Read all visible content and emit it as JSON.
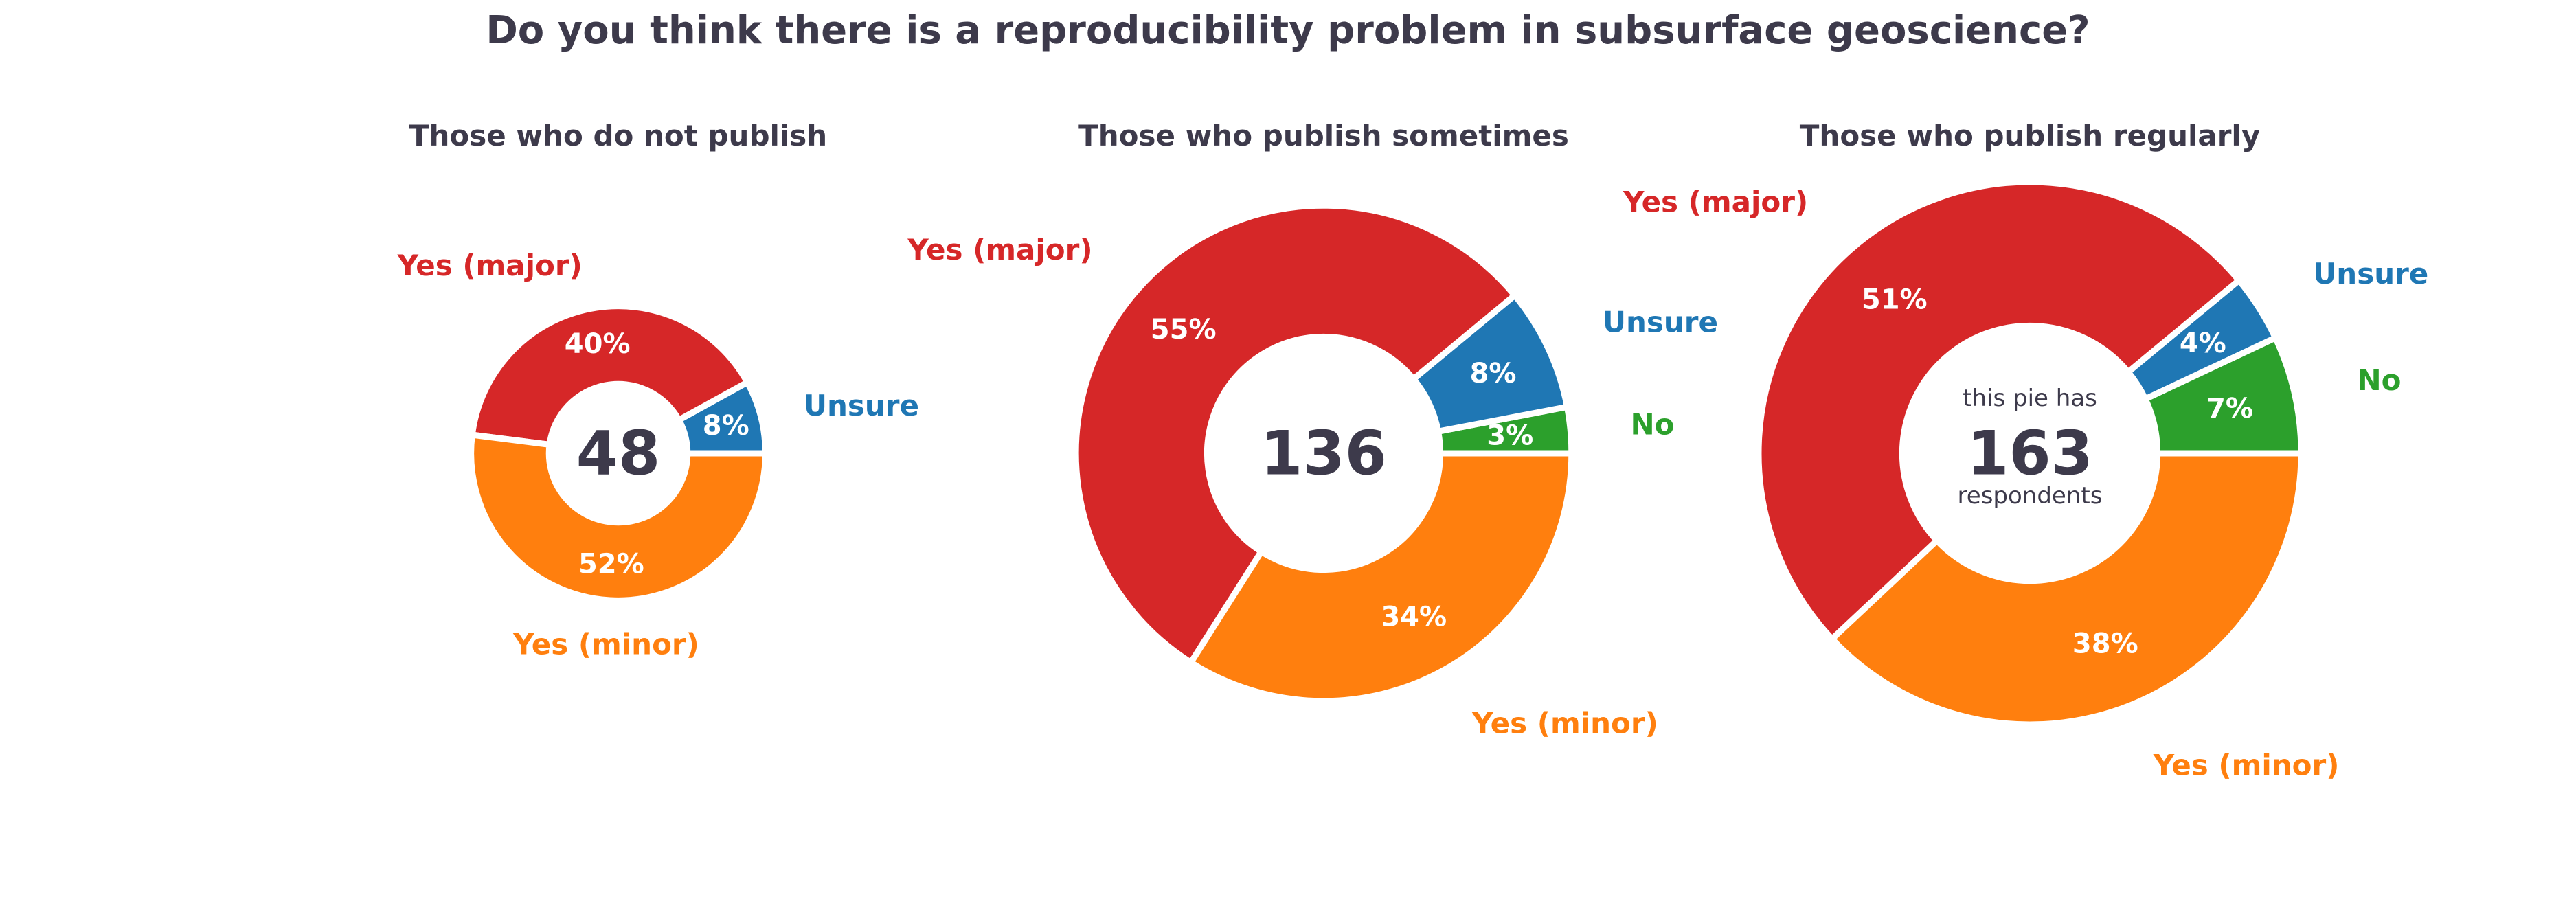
{
  "title": "Do you think there is a reproducibility problem in subsurface geoscience?",
  "colors": {
    "yes_major": "#d62728",
    "yes_minor": "#ff7f0e",
    "unsure": "#1f77b4",
    "no": "#2ca02c",
    "text": "#3d3a4b"
  },
  "chart_data": [
    {
      "type": "pie",
      "style": "donut",
      "title": "Those who do not publish",
      "center_label": "48",
      "respondents": 48,
      "categories": [
        "Unsure",
        "Yes (major)",
        "Yes (minor)"
      ],
      "values": [
        8,
        40,
        52
      ],
      "value_labels": [
        "8%",
        "40%",
        "52%"
      ],
      "category_colors": [
        "#1f77b4",
        "#d62728",
        "#ff7f0e"
      ]
    },
    {
      "type": "pie",
      "style": "donut",
      "title": "Those who publish sometimes",
      "center_label": "136",
      "respondents": 136,
      "categories": [
        "No",
        "Unsure",
        "Yes (major)",
        "Yes (minor)"
      ],
      "values": [
        3,
        8,
        55,
        34
      ],
      "value_labels": [
        "3%",
        "8%",
        "55%",
        "34%"
      ],
      "category_colors": [
        "#2ca02c",
        "#1f77b4",
        "#d62728",
        "#ff7f0e"
      ]
    },
    {
      "type": "pie",
      "style": "donut",
      "title": "Those who publish regularly",
      "center_label": "163",
      "center_caption_top": "this pie has",
      "center_caption_bottom": "respondents",
      "respondents": 163,
      "categories": [
        "No",
        "Unsure",
        "Yes (major)",
        "Yes (minor)"
      ],
      "values": [
        7,
        4,
        51,
        38
      ],
      "value_labels": [
        "7%",
        "4%",
        "51%",
        "38%"
      ],
      "category_colors": [
        "#2ca02c",
        "#1f77b4",
        "#d62728",
        "#ff7f0e"
      ]
    }
  ]
}
